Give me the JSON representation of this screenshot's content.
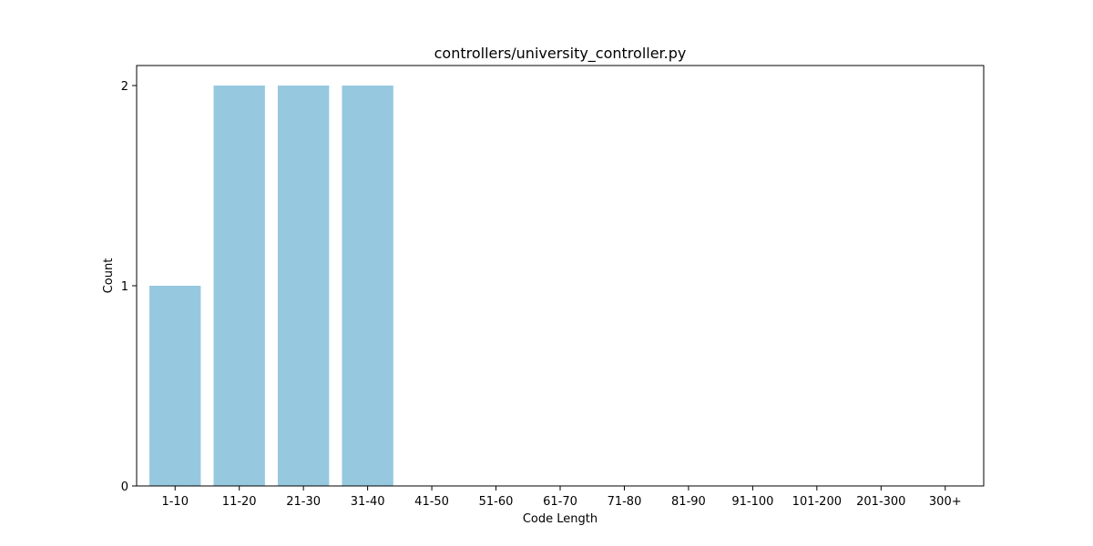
{
  "chart_data": {
    "type": "bar",
    "title": "controllers/university_controller.py",
    "xlabel": "Code Length",
    "ylabel": "Count",
    "categories": [
      "1-10",
      "11-20",
      "21-30",
      "31-40",
      "41-50",
      "51-60",
      "61-70",
      "71-80",
      "81-90",
      "91-100",
      "101-200",
      "201-300",
      "300+"
    ],
    "values": [
      1,
      2,
      2,
      2,
      0,
      0,
      0,
      0,
      0,
      0,
      0,
      0,
      0
    ],
    "yticks": [
      0,
      1,
      2
    ],
    "ylim": [
      0,
      2.1
    ],
    "grid": false,
    "bar_color": "#96c9df"
  }
}
